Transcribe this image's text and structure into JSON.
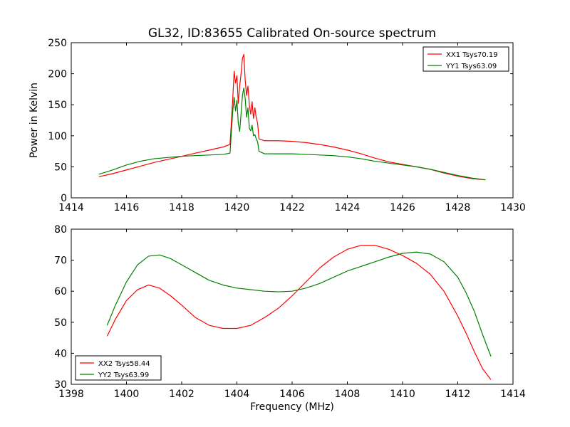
{
  "title": "GL32, ID:83655 Calibrated On-source spectrum",
  "chart_data": [
    {
      "type": "line",
      "ylabel": "Power in Kelvin",
      "xlabel": "",
      "xlim": [
        1414,
        1430
      ],
      "ylim": [
        0,
        250
      ],
      "xticks": [
        1414,
        1416,
        1418,
        1420,
        1422,
        1424,
        1426,
        1428,
        1430
      ],
      "yticks": [
        0,
        50,
        100,
        150,
        200,
        250
      ],
      "grid": false,
      "legend_position": "top-right",
      "series": [
        {
          "name": "XX1 Tsys70.19",
          "color": "#ff0000",
          "x": [
            1415,
            1415.5,
            1416,
            1416.5,
            1417,
            1417.5,
            1418,
            1418.5,
            1419,
            1419.5,
            1419.75,
            1419.85,
            1419.9,
            1419.95,
            1420.0,
            1420.05,
            1420.1,
            1420.15,
            1420.2,
            1420.25,
            1420.3,
            1420.35,
            1420.4,
            1420.45,
            1420.5,
            1420.55,
            1420.6,
            1420.65,
            1420.7,
            1420.75,
            1420.8,
            1421,
            1421.5,
            1422,
            1422.5,
            1423,
            1423.5,
            1424,
            1424.5,
            1425,
            1425.5,
            1426,
            1426.5,
            1427,
            1427.5,
            1428,
            1428.5,
            1429
          ],
          "y": [
            34,
            39,
            45,
            51,
            57,
            62,
            67,
            72,
            77,
            82,
            86,
            160,
            204,
            185,
            197,
            152,
            180,
            200,
            225,
            231,
            190,
            165,
            180,
            150,
            135,
            155,
            128,
            145,
            130,
            120,
            95,
            92,
            92,
            91,
            89,
            86,
            82,
            77,
            71,
            64,
            58,
            54,
            50,
            46,
            40,
            35,
            31,
            29
          ]
        },
        {
          "name": "YY1 Tsys63.09",
          "color": "#008000",
          "x": [
            1415,
            1415.5,
            1416,
            1416.5,
            1417,
            1417.5,
            1418,
            1418.5,
            1419,
            1419.5,
            1419.75,
            1419.85,
            1419.9,
            1419.95,
            1420.0,
            1420.05,
            1420.1,
            1420.15,
            1420.2,
            1420.25,
            1420.3,
            1420.35,
            1420.4,
            1420.45,
            1420.5,
            1420.55,
            1420.6,
            1420.65,
            1420.7,
            1420.75,
            1420.8,
            1421,
            1421.5,
            1422,
            1422.5,
            1423,
            1423.5,
            1424,
            1424.5,
            1425,
            1425.5,
            1426,
            1426.5,
            1427,
            1427.5,
            1428,
            1428.5,
            1429
          ],
          "y": [
            38,
            45,
            53,
            59,
            63,
            65,
            67,
            68,
            69,
            70,
            72,
            140,
            162,
            140,
            157,
            120,
            107,
            135,
            165,
            177,
            160,
            130,
            145,
            112,
            108,
            117,
            100,
            102,
            95,
            90,
            75,
            71,
            71,
            71,
            70,
            69,
            68,
            66,
            63,
            59,
            56,
            53,
            50,
            46,
            41,
            36,
            32,
            29
          ]
        }
      ]
    },
    {
      "type": "line",
      "xlabel": "Frequency (MHz)",
      "ylabel": "",
      "xlim": [
        1398,
        1414
      ],
      "ylim": [
        30,
        80
      ],
      "xticks": [
        1398,
        1400,
        1402,
        1404,
        1406,
        1408,
        1410,
        1412,
        1414
      ],
      "yticks": [
        30,
        40,
        50,
        60,
        70,
        80
      ],
      "grid": false,
      "legend_position": "bottom-left",
      "series": [
        {
          "name": "XX2 Tsys58.44",
          "color": "#ff0000",
          "x": [
            1399.3,
            1399.6,
            1400,
            1400.4,
            1400.8,
            1401.2,
            1401.6,
            1402,
            1402.5,
            1403,
            1403.5,
            1404,
            1404.5,
            1405,
            1405.5,
            1406,
            1406.5,
            1407,
            1407.5,
            1408,
            1408.5,
            1409,
            1409.5,
            1410,
            1410.5,
            1411,
            1411.5,
            1412,
            1412.3,
            1412.6,
            1412.9,
            1413.2
          ],
          "y": [
            45.5,
            51,
            57,
            60.5,
            62,
            61,
            58.5,
            55.5,
            51.5,
            49,
            48,
            48,
            49,
            51.5,
            54.5,
            58.5,
            63,
            67.5,
            71,
            73.5,
            74.8,
            74.8,
            73.5,
            71.5,
            69,
            65.5,
            60,
            52,
            46.5,
            40.5,
            35,
            31.5
          ]
        },
        {
          "name": "YY2 Tsys63.99",
          "color": "#008000",
          "x": [
            1399.3,
            1399.6,
            1400,
            1400.4,
            1400.8,
            1401.2,
            1401.6,
            1402,
            1402.5,
            1403,
            1403.5,
            1404,
            1404.5,
            1405,
            1405.5,
            1406,
            1406.5,
            1407,
            1407.5,
            1408,
            1408.5,
            1409,
            1409.5,
            1410,
            1410.5,
            1411,
            1411.5,
            1412,
            1412.3,
            1412.6,
            1412.9,
            1413.2
          ],
          "y": [
            49,
            55.5,
            63,
            68.5,
            71.3,
            71.7,
            70.5,
            68.5,
            66,
            63.5,
            62,
            61,
            60.5,
            60,
            59.8,
            60,
            61,
            62.5,
            64.5,
            66.5,
            68,
            69.5,
            71,
            72.2,
            72.6,
            72,
            69.5,
            64.5,
            59.5,
            53.5,
            46,
            39
          ]
        }
      ]
    }
  ]
}
